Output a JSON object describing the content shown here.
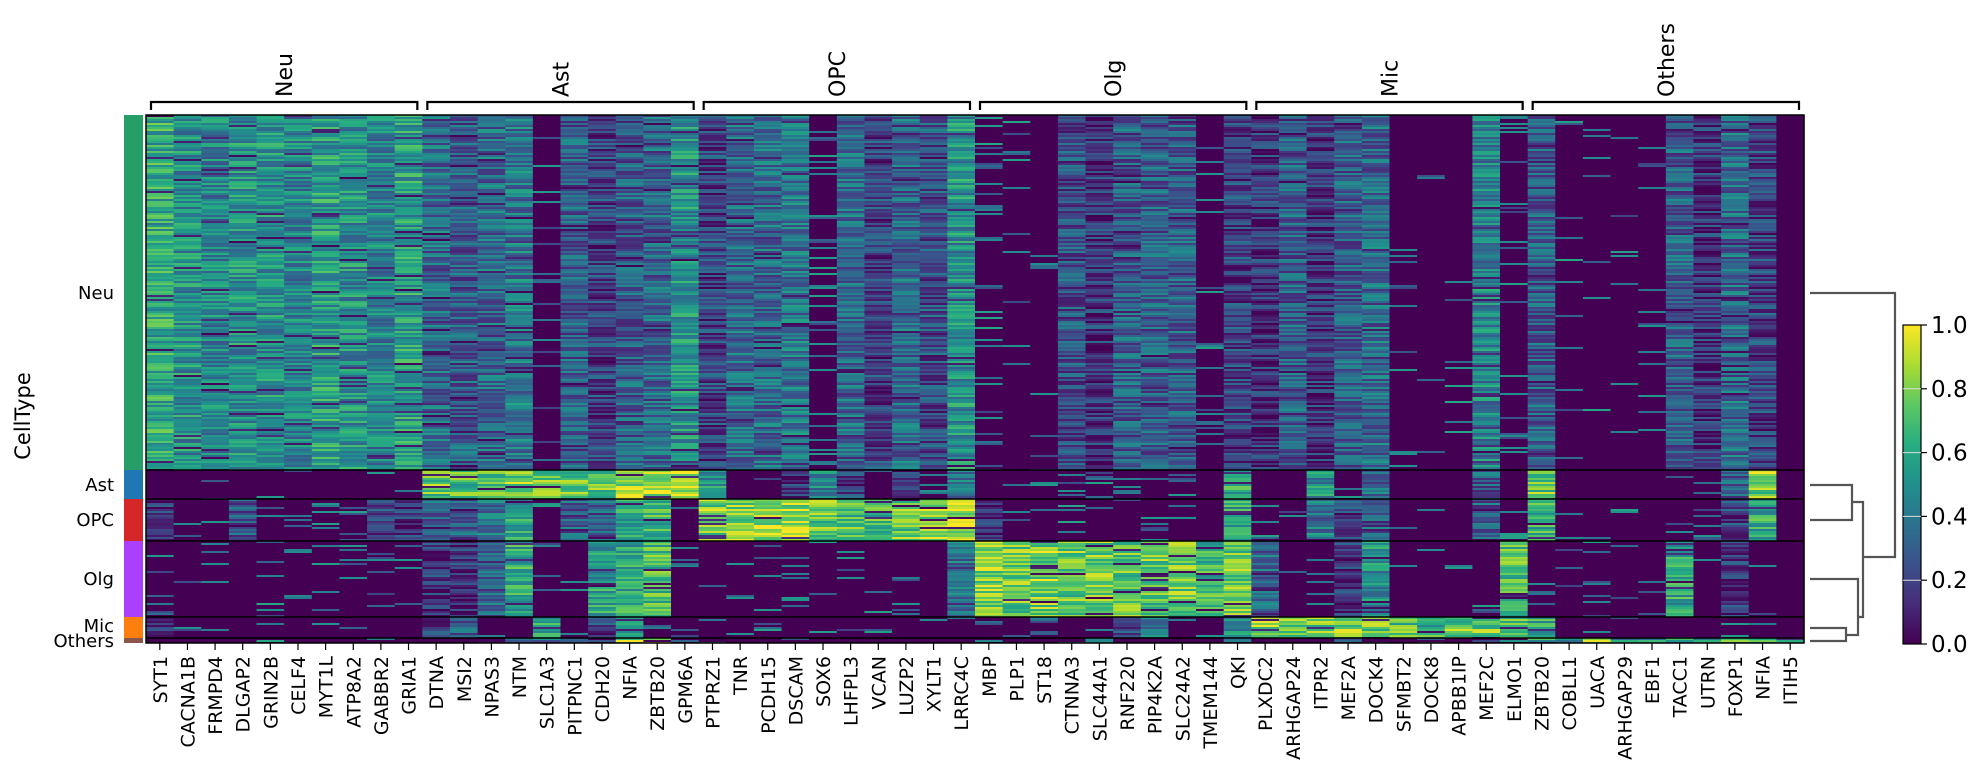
{
  "chart_data": {
    "type": "heatmap",
    "ylabel": "CellType",
    "row_groups": [
      "Neu",
      "Ast",
      "OPC",
      "Olg",
      "Mic",
      "Others"
    ],
    "row_group_colors": [
      "#279e68",
      "#1f77b4",
      "#d62728",
      "#aa40fc",
      "#ff7f0e",
      "#8c564b"
    ],
    "gene_groups": [
      {
        "label": "Neu",
        "genes": [
          "SYT1",
          "CACNA1B",
          "FRMPD4",
          "DLGAP2",
          "GRIN2B",
          "CELF4",
          "MYT1L",
          "ATP8A2",
          "GABBR2",
          "GRIA1"
        ]
      },
      {
        "label": "Ast",
        "genes": [
          "DTNA",
          "MSI2",
          "NPAS3",
          "NTM",
          "SLC1A3",
          "PITPNC1",
          "CDH20",
          "NFIA",
          "ZBTB20",
          "GPM6A"
        ]
      },
      {
        "label": "OPC",
        "genes": [
          "PTPRZ1",
          "TNR",
          "PCDH15",
          "DSCAM",
          "SOX6",
          "LHFPL3",
          "VCAN",
          "LUZP2",
          "XYLT1",
          "LRRC4C"
        ]
      },
      {
        "label": "Olg",
        "genes": [
          "MBP",
          "PLP1",
          "ST18",
          "CTNNA3",
          "SLC44A1",
          "RNF220",
          "PIP4K2A",
          "SLC24A2",
          "TMEM144",
          "QKI"
        ]
      },
      {
        "label": "Mic",
        "genes": [
          "PLXDC2",
          "ARHGAP24",
          "ITPR2",
          "MEF2A",
          "DOCK4",
          "SFMBT2",
          "DOCK8",
          "APBB1IP",
          "MEF2C",
          "ELMO1"
        ]
      },
      {
        "label": "Others",
        "genes": [
          "ZBTB20",
          "COBLL1",
          "UACA",
          "ARHGAP29",
          "EBF1",
          "TACC1",
          "UTRN",
          "FOXP1",
          "NFIA",
          "ITIH5"
        ]
      }
    ],
    "mean_expression": {
      "Neu": [
        0.6,
        0.5,
        0.45,
        0.5,
        0.5,
        0.45,
        0.55,
        0.5,
        0.45,
        0.55,
        0.35,
        0.3,
        0.35,
        0.4,
        0.05,
        0.3,
        0.2,
        0.3,
        0.35,
        0.5,
        0.2,
        0.35,
        0.35,
        0.4,
        0.1,
        0.35,
        0.2,
        0.35,
        0.25,
        0.5,
        0.1,
        0.03,
        0.03,
        0.25,
        0.15,
        0.3,
        0.3,
        0.3,
        0.05,
        0.2,
        0.15,
        0.3,
        0.15,
        0.3,
        0.35,
        0.05,
        0.03,
        0.03,
        0.45,
        0.1,
        0.3,
        0.03,
        0.03,
        0.03,
        0.03,
        0.3,
        0.15,
        0.35,
        0.2,
        0.0
      ],
      "Ast": [
        0.05,
        0.05,
        0.05,
        0.05,
        0.05,
        0.05,
        0.05,
        0.05,
        0.05,
        0.1,
        0.75,
        0.7,
        0.75,
        0.8,
        0.75,
        0.75,
        0.75,
        0.85,
        0.85,
        0.9,
        0.5,
        0.05,
        0.05,
        0.15,
        0.45,
        0.2,
        0.05,
        0.2,
        0.1,
        0.4,
        0.05,
        0.02,
        0.02,
        0.1,
        0.1,
        0.1,
        0.1,
        0.1,
        0.02,
        0.6,
        0.05,
        0.1,
        0.5,
        0.1,
        0.35,
        0.05,
        0.03,
        0.03,
        0.3,
        0.05,
        0.75,
        0.03,
        0.03,
        0.03,
        0.03,
        0.1,
        0.1,
        0.3,
        0.8,
        0.0
      ],
      "OPC": [
        0.15,
        0.05,
        0.05,
        0.3,
        0.05,
        0.1,
        0.1,
        0.1,
        0.2,
        0.15,
        0.3,
        0.3,
        0.4,
        0.55,
        0.1,
        0.3,
        0.3,
        0.55,
        0.65,
        0.1,
        0.8,
        0.8,
        0.85,
        0.85,
        0.75,
        0.7,
        0.7,
        0.75,
        0.8,
        0.9,
        0.15,
        0.03,
        0.03,
        0.1,
        0.05,
        0.05,
        0.1,
        0.1,
        0.03,
        0.6,
        0.1,
        0.1,
        0.4,
        0.25,
        0.35,
        0.05,
        0.03,
        0.03,
        0.3,
        0.05,
        0.65,
        0.03,
        0.03,
        0.03,
        0.03,
        0.05,
        0.1,
        0.2,
        0.6,
        0.0
      ],
      "Olg": [
        0.1,
        0.05,
        0.05,
        0.05,
        0.05,
        0.05,
        0.05,
        0.05,
        0.1,
        0.05,
        0.15,
        0.15,
        0.3,
        0.6,
        0.05,
        0.05,
        0.55,
        0.6,
        0.7,
        0.05,
        0.05,
        0.05,
        0.05,
        0.05,
        0.05,
        0.05,
        0.05,
        0.05,
        0.05,
        0.4,
        0.8,
        0.75,
        0.8,
        0.75,
        0.75,
        0.75,
        0.75,
        0.75,
        0.65,
        0.75,
        0.35,
        0.05,
        0.1,
        0.15,
        0.5,
        0.05,
        0.05,
        0.05,
        0.05,
        0.7,
        0.1,
        0.05,
        0.1,
        0.03,
        0.03,
        0.6,
        0.03,
        0.15,
        0.05,
        0.0
      ],
      "Mic": [
        0.2,
        0.05,
        0.05,
        0.05,
        0.05,
        0.05,
        0.05,
        0.05,
        0.1,
        0.05,
        0.2,
        0.3,
        0.05,
        0.05,
        0.6,
        0.05,
        0.25,
        0.6,
        0.1,
        0.05,
        0.05,
        0.05,
        0.05,
        0.05,
        0.05,
        0.05,
        0.05,
        0.05,
        0.05,
        0.1,
        0.1,
        0.05,
        0.05,
        0.05,
        0.1,
        0.25,
        0.4,
        0.05,
        0.05,
        0.5,
        0.8,
        0.75,
        0.75,
        0.8,
        0.75,
        0.7,
        0.65,
        0.75,
        0.75,
        0.7,
        0.6,
        0.03,
        0.03,
        0.03,
        0.03,
        0.05,
        0.05,
        0.1,
        0.05,
        0.0
      ],
      "Others": [
        0.05,
        0.05,
        0.05,
        0.05,
        0.05,
        0.05,
        0.05,
        0.05,
        0.05,
        0.05,
        0.1,
        0.1,
        0.2,
        0.3,
        0.4,
        0.3,
        0.1,
        0.8,
        0.8,
        0.1,
        0.05,
        0.05,
        0.05,
        0.05,
        0.05,
        0.05,
        0.05,
        0.05,
        0.05,
        0.05,
        0.1,
        0.1,
        0.05,
        0.1,
        0.6,
        0.05,
        0.1,
        0.05,
        0.05,
        0.3,
        0.1,
        0.1,
        0.1,
        0.1,
        0.1,
        0.1,
        0.1,
        0.1,
        0.1,
        0.1,
        0.6,
        0.5,
        0.8,
        0.5,
        0.5,
        0.6,
        0.6,
        0.7,
        0.7,
        0.6
      ]
    },
    "colorbar": {
      "colormap": "viridis",
      "range": [
        0.0,
        1.0
      ],
      "ticks": [
        "0.0",
        "0.2",
        "0.4",
        "0.6",
        "0.8",
        "1.0"
      ]
    },
    "dendrogram": true
  }
}
